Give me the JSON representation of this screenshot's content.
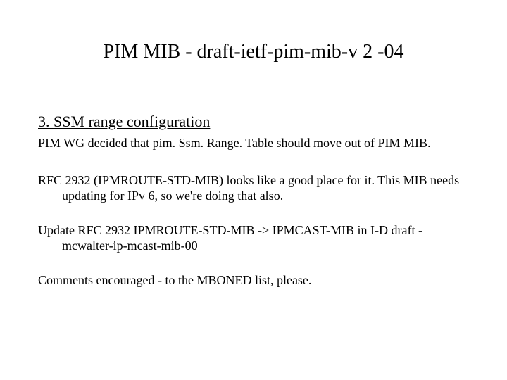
{
  "title": "PIM MIB - draft-ietf-pim-mib-v 2 -04",
  "section_heading": "3. SSM range configuration",
  "p1": "PIM WG decided that pim. Ssm. Range. Table should move out of PIM MIB.",
  "p2": "RFC 2932 (IPMROUTE-STD-MIB) looks like a good place for it.  This MIB needs updating for IPv 6, so we're doing that also.",
  "p3": "Update RFC 2932 IPMROUTE-STD-MIB -> IPMCAST-MIB in I-D draft -mcwalter-ip-mcast-mib-00",
  "p4": "Comments encouraged - to the MBONED list, please."
}
